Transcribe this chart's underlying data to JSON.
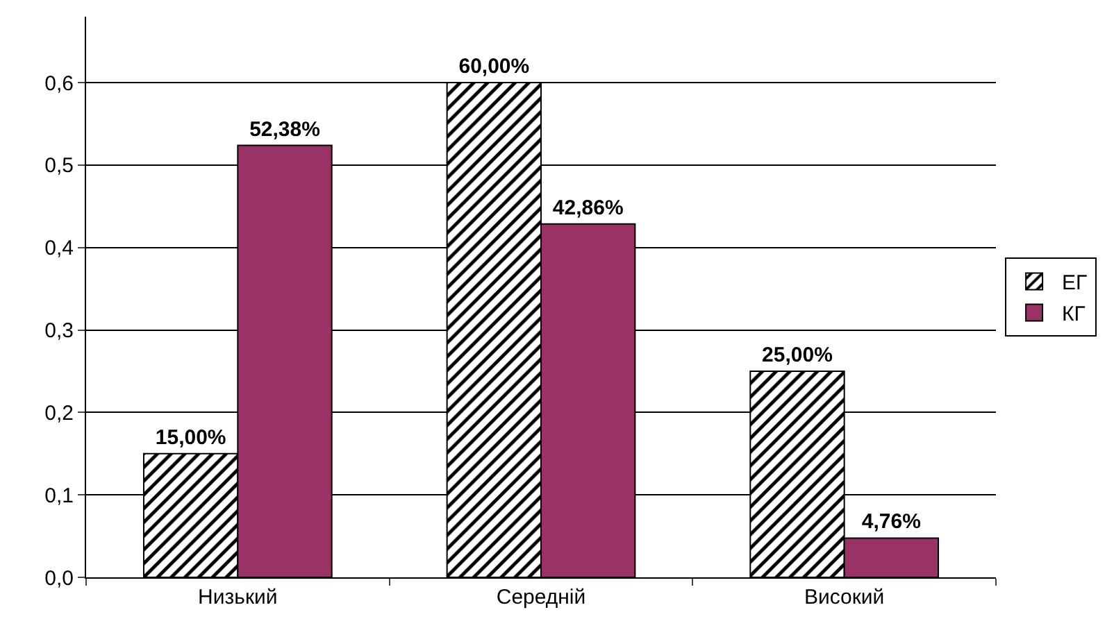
{
  "chart_data": {
    "type": "bar",
    "categories": [
      "Низький",
      "Середній",
      "Високий"
    ],
    "series": [
      {
        "name": "ЕГ",
        "color": "#000000",
        "values": [
          0.15,
          0.6,
          0.25
        ],
        "value_labels": [
          "15,00%",
          "60,00%",
          "25,00%"
        ]
      },
      {
        "name": "КГ",
        "color": "#993366",
        "values": [
          0.5238,
          0.4286,
          0.0476
        ],
        "value_labels": [
          "52,38%",
          "42,86%",
          "4,76%"
        ]
      }
    ],
    "ylim": [
      0,
      0.68
    ],
    "yticks": [
      {
        "value": 0,
        "label": "0,0"
      },
      {
        "value": 0.1,
        "label": "0,1"
      },
      {
        "value": 0.2,
        "label": "0,2"
      },
      {
        "value": 0.3,
        "label": "0,3"
      },
      {
        "value": 0.4,
        "label": "0,4"
      },
      {
        "value": 0.5,
        "label": "0,5"
      },
      {
        "value": 0.6,
        "label": "0,6"
      }
    ],
    "grid": "y",
    "legend": "right"
  }
}
